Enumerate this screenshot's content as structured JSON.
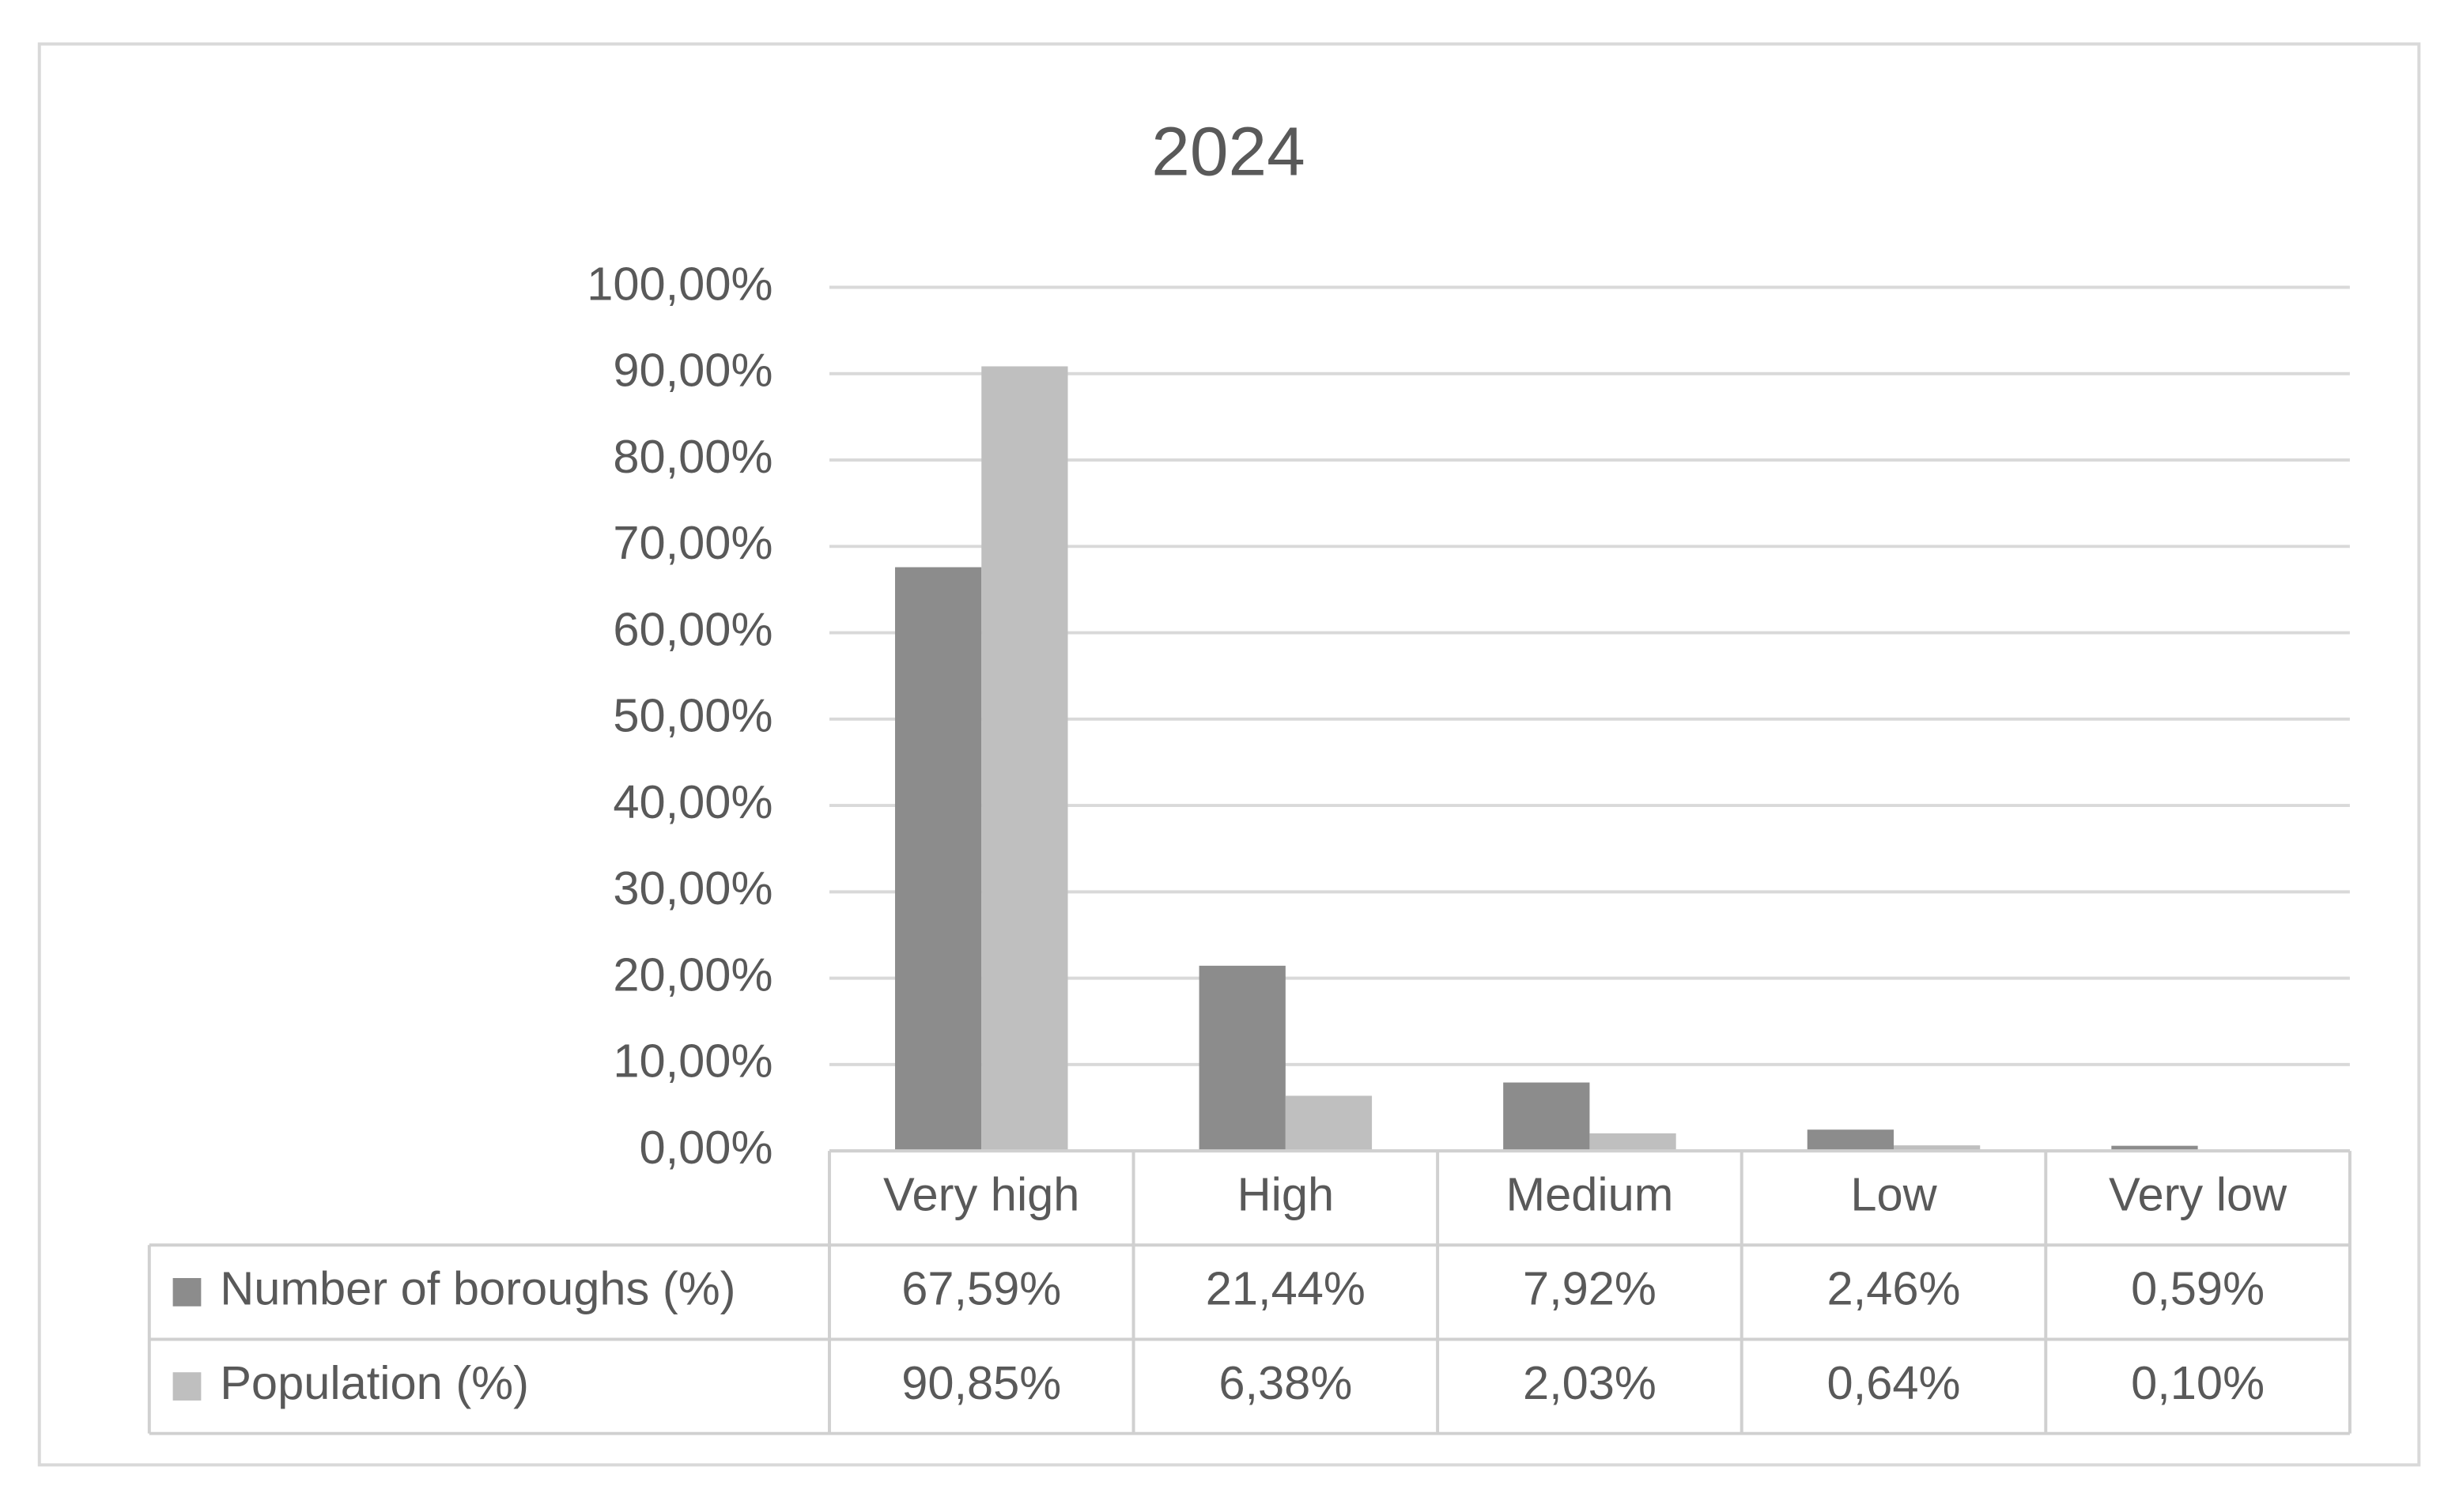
{
  "chart_data": {
    "type": "bar",
    "title": "2024",
    "categories": [
      "Very high",
      "High",
      "Medium",
      "Low",
      "Very low"
    ],
    "series": [
      {
        "name": "Number of boroughs (%)",
        "color": "#8c8c8c",
        "values": [
          67.59,
          21.44,
          7.92,
          2.46,
          0.59
        ],
        "value_labels": [
          "67,59%",
          "21,44%",
          "7,92%",
          "2,46%",
          "0,59%"
        ]
      },
      {
        "name": "Population (%)",
        "color": "#bfbfbf",
        "values": [
          90.85,
          6.38,
          2.03,
          0.64,
          0.1
        ],
        "value_labels": [
          "90,85%",
          "6,38%",
          "2,03%",
          "0,64%",
          "0,10%"
        ]
      }
    ],
    "ylim": [
      0,
      100
    ],
    "yticks": [
      {
        "value": 0,
        "label": "0,00%"
      },
      {
        "value": 10,
        "label": "10,00%"
      },
      {
        "value": 20,
        "label": "20,00%"
      },
      {
        "value": 30,
        "label": "30,00%"
      },
      {
        "value": 40,
        "label": "40,00%"
      },
      {
        "value": 50,
        "label": "50,00%"
      },
      {
        "value": 60,
        "label": "60,00%"
      },
      {
        "value": 70,
        "label": "70,00%"
      },
      {
        "value": 80,
        "label": "80,00%"
      },
      {
        "value": 90,
        "label": "90,00%"
      },
      {
        "value": 100,
        "label": "100,00%"
      }
    ],
    "grid": true,
    "data_table": true
  }
}
